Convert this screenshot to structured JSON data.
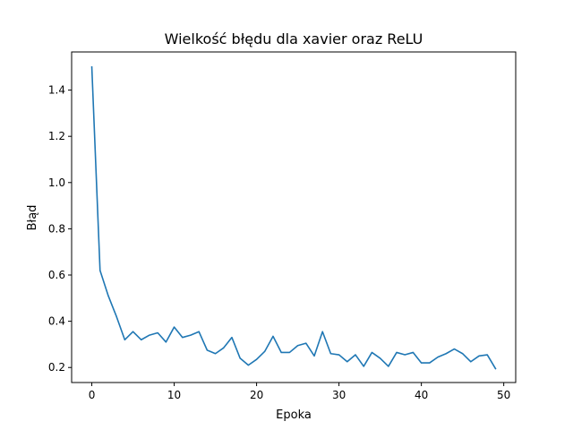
{
  "chart_data": {
    "type": "line",
    "title": "Wielkość błędu dla xavier oraz ReLU",
    "xlabel": "Epoka",
    "ylabel": "Błąd",
    "xlim": [
      -2.45,
      51.45
    ],
    "ylim": [
      0.135,
      1.565
    ],
    "xticks": [
      0,
      10,
      20,
      30,
      40,
      50
    ],
    "yticks": [
      0.2,
      0.4,
      0.6,
      0.8,
      1.0,
      1.2,
      1.4
    ],
    "ytick_labels": [
      "0.2",
      "0.4",
      "0.6",
      "0.8",
      "1.0",
      "1.2",
      "1.4"
    ],
    "grid": false,
    "series": [
      {
        "color": "#1f77b4",
        "x": [
          0,
          1,
          2,
          3,
          4,
          5,
          6,
          7,
          8,
          9,
          10,
          11,
          12,
          13,
          14,
          15,
          16,
          17,
          18,
          19,
          20,
          21,
          22,
          23,
          24,
          25,
          26,
          27,
          28,
          29,
          30,
          31,
          32,
          33,
          34,
          35,
          36,
          37,
          38,
          39,
          40,
          41,
          42,
          43,
          44,
          45,
          46,
          47,
          48,
          49
        ],
        "y": [
          1.5,
          0.62,
          0.51,
          0.42,
          0.32,
          0.355,
          0.32,
          0.34,
          0.35,
          0.31,
          0.375,
          0.33,
          0.34,
          0.355,
          0.275,
          0.26,
          0.285,
          0.33,
          0.24,
          0.21,
          0.235,
          0.27,
          0.335,
          0.265,
          0.265,
          0.295,
          0.305,
          0.25,
          0.355,
          0.26,
          0.255,
          0.225,
          0.255,
          0.205,
          0.265,
          0.24,
          0.205,
          0.265,
          0.255,
          0.265,
          0.22,
          0.22,
          0.245,
          0.26,
          0.28,
          0.26,
          0.225,
          0.25,
          0.255,
          0.195
        ]
      }
    ]
  }
}
